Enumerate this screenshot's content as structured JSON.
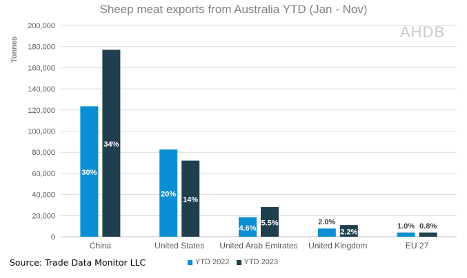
{
  "chart_data": {
    "type": "bar",
    "title": "Sheep meat exports from Australia YTD (Jan - Nov)",
    "ylabel": "Tonnes",
    "xlabel": "",
    "ylim": [
      0,
      200000
    ],
    "yticks": [
      0,
      20000,
      40000,
      60000,
      80000,
      100000,
      120000,
      140000,
      160000,
      180000,
      200000
    ],
    "ytick_labels": [
      "0",
      "20,000",
      "40,000",
      "60,000",
      "80,000",
      "100,000",
      "120,000",
      "140,000",
      "160,000",
      "180,000",
      "200,000"
    ],
    "grid": true,
    "legend_position": "bottom",
    "categories": [
      "China",
      "United States",
      "United Arab Emirates",
      "United Kingdom",
      "EU 27"
    ],
    "series": [
      {
        "name": "YTD 2022",
        "color": "#0b8fd2",
        "values": [
          123500,
          82500,
          18500,
          7800,
          4000
        ],
        "labels": [
          "30%",
          "20%",
          "4.6%",
          "2.0%",
          "1.0%"
        ]
      },
      {
        "name": "YTD 2023",
        "color": "#1f3f4f",
        "values": [
          177000,
          72000,
          28000,
          11000,
          4000
        ],
        "labels": [
          "34%",
          "14%",
          "5.5%",
          "2.2%",
          "0.8%"
        ]
      }
    ]
  },
  "source_text": "Source: Trade Data Monitor LLC",
  "watermark": "AHDB"
}
